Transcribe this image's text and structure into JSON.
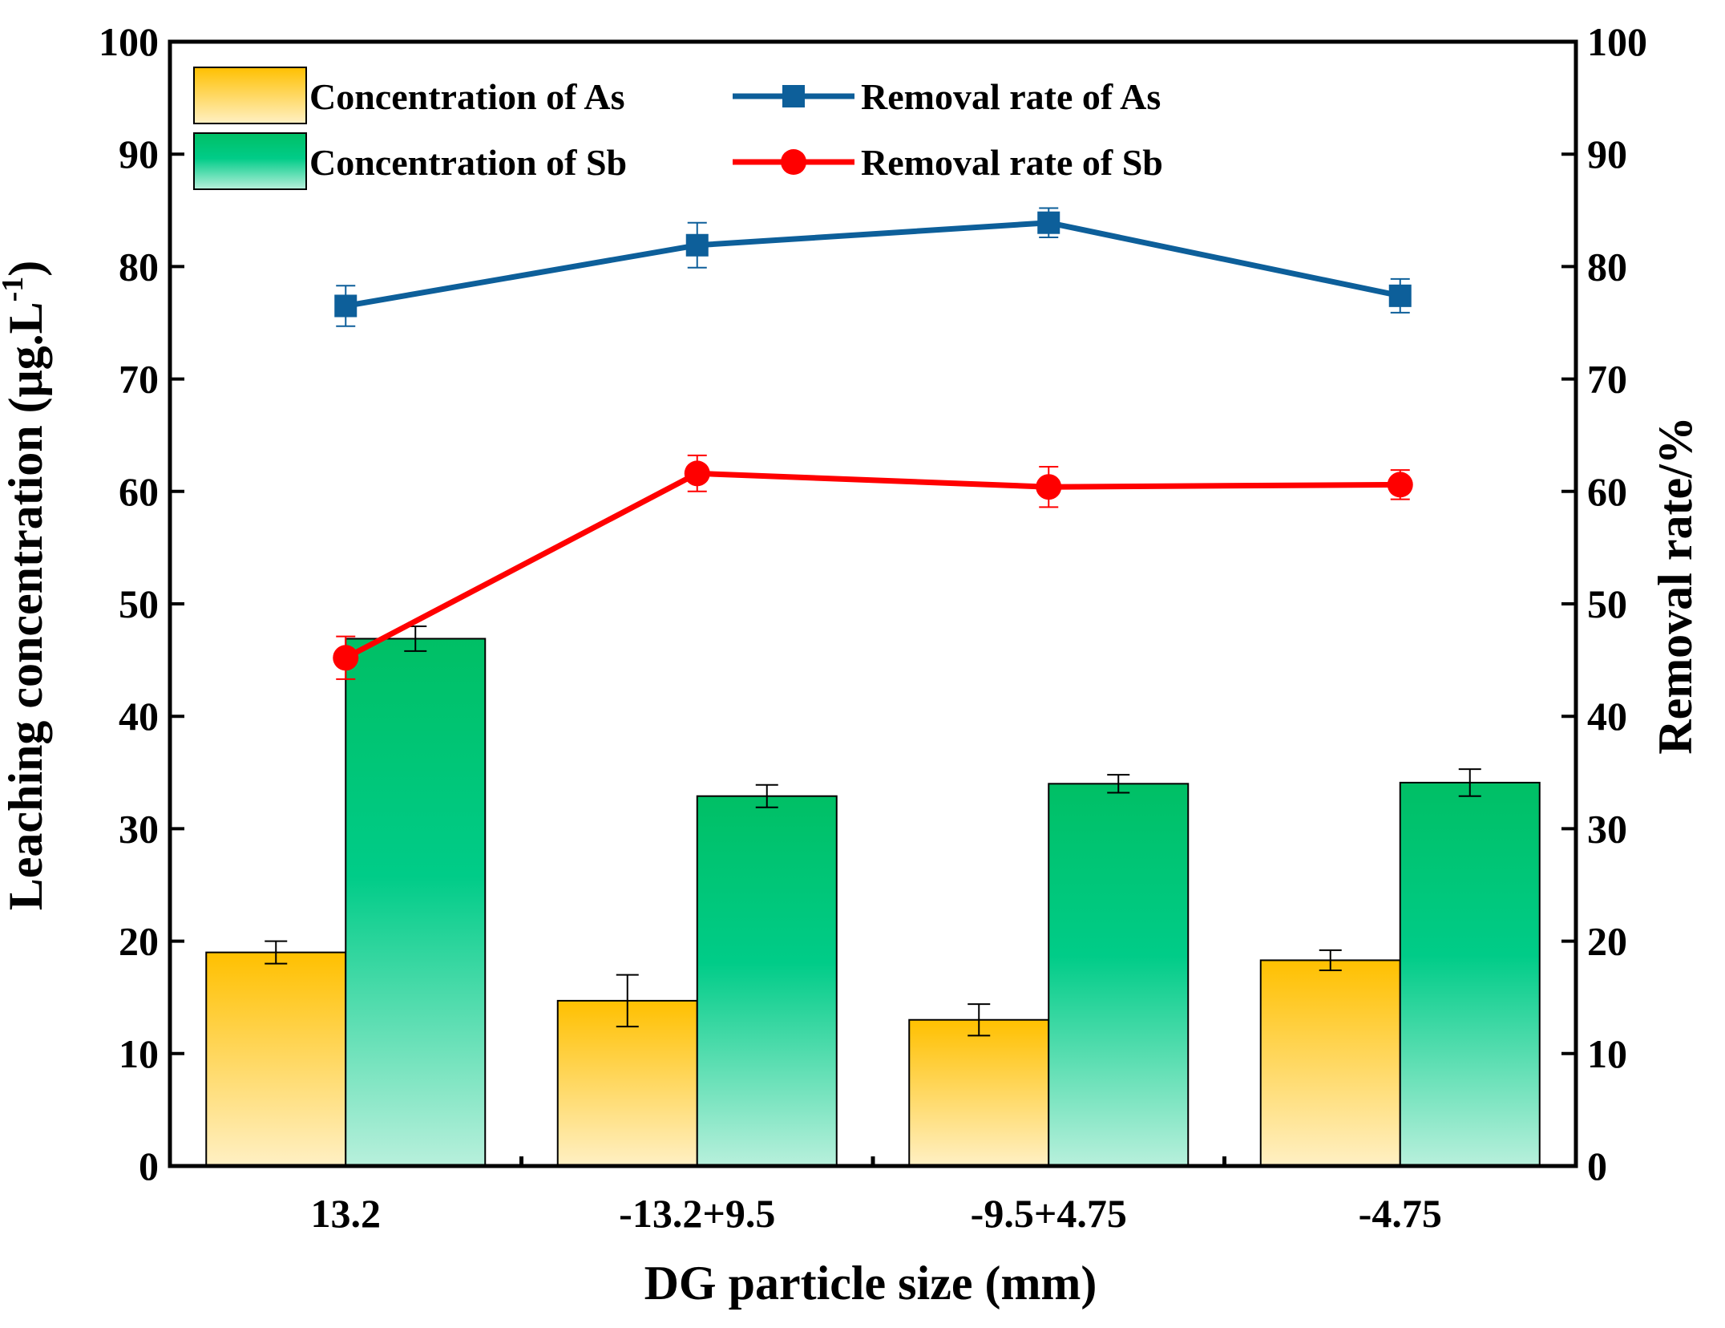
{
  "chart_data": {
    "type": "bar",
    "xlabel": "DG particle size (mm)",
    "ylabel": "Leaching concentration (μg.L",
    "ylabel_sup": "-1",
    "ylabel_close": ")",
    "y2label": "Removal rate/%",
    "categories": [
      "13.2",
      "-13.2+9.5",
      "-9.5+4.75",
      "-4.75"
    ],
    "ylim": [
      0,
      100
    ],
    "y2lim": [
      0,
      100
    ],
    "yticks": [
      "0",
      "10",
      "20",
      "30",
      "40",
      "50",
      "60",
      "70",
      "80",
      "90",
      "100"
    ],
    "y2ticks": [
      "0",
      "10",
      "20",
      "30",
      "40",
      "50",
      "60",
      "70",
      "80",
      "90",
      "100"
    ],
    "grid": false,
    "legend_position": "top-left",
    "bar_series": [
      {
        "name": "Concentration of As",
        "values": [
          19.0,
          14.7,
          13.0,
          18.3
        ],
        "errors": [
          1.0,
          2.3,
          1.4,
          0.9
        ],
        "color_top": "#ffc000",
        "color_bottom": "#fff0c4"
      },
      {
        "name": "Concentration of Sb",
        "values": [
          46.9,
          32.9,
          34.0,
          34.1
        ],
        "errors": [
          1.1,
          1.0,
          0.8,
          1.2
        ],
        "color_top": "#00bf65",
        "color_bottom": "#b8f0dc"
      }
    ],
    "line_series": [
      {
        "name": "Removal rate of As",
        "values": [
          76.5,
          81.9,
          83.9,
          77.4
        ],
        "errors": [
          1.8,
          2.0,
          1.3,
          1.5
        ],
        "color": "#0d5f9a",
        "marker": "square"
      },
      {
        "name": "Removal rate of Sb",
        "values": [
          45.2,
          61.6,
          60.4,
          60.6
        ],
        "errors": [
          1.9,
          1.6,
          1.8,
          1.3
        ],
        "color": "#ff0000",
        "marker": "circle"
      }
    ]
  }
}
